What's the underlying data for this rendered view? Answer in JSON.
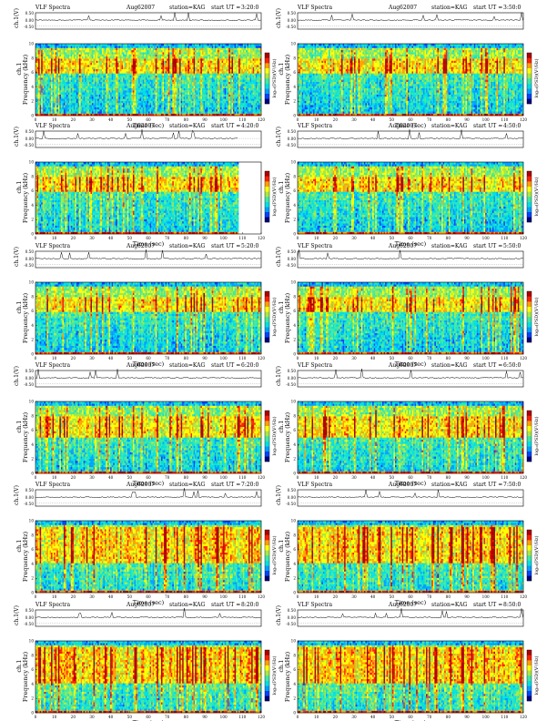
{
  "header": {
    "product": "VLF Spectra",
    "date": "Aug62007",
    "station": "station=KAG",
    "start_label": "start  UT ="
  },
  "labels": {
    "amplitude_axis": "ch.1(V)",
    "channel": "ch.1",
    "frequency_axis": "Frequency (kHz)",
    "time_axis": "Time (sec)",
    "colorbar": "log₁₀(PSD)(V²/Hz)"
  },
  "colors": {
    "cmap": [
      "#000080",
      "#0044ff",
      "#00a0ff",
      "#00e0e0",
      "#40e8a0",
      "#a8e840",
      "#ffff00",
      "#ffa000",
      "#ff2000",
      "#b00000"
    ]
  },
  "chart_data": [
    {
      "type": "heatmap",
      "panel": 1,
      "start": "3:20:0",
      "x_range": [
        0,
        120
      ],
      "y_range": [
        0,
        10
      ],
      "amplitude_ticks": [
        "0.50",
        "0.00",
        "-0.50"
      ],
      "x_ticks": [
        0,
        10,
        20,
        30,
        40,
        50,
        60,
        70,
        80,
        90,
        100,
        110,
        120
      ],
      "y_ticks": [
        0,
        2,
        4,
        6,
        8,
        10
      ],
      "data_end_sec": 120,
      "peak_band_khz": [
        6,
        8
      ],
      "intensity": "medium"
    },
    {
      "type": "heatmap",
      "panel": 2,
      "start": "3:50:0",
      "x_range": [
        0,
        120
      ],
      "y_range": [
        0,
        10
      ],
      "amplitude_ticks": [
        "0.50",
        "0.00",
        "-0.50"
      ],
      "x_ticks": [
        0,
        10,
        20,
        30,
        40,
        50,
        60,
        70,
        80,
        90,
        100,
        110,
        120
      ],
      "y_ticks": [
        0,
        2,
        4,
        6,
        8,
        10
      ],
      "data_end_sec": 120,
      "peak_band_khz": [
        6,
        8
      ],
      "intensity": "medium"
    },
    {
      "type": "heatmap",
      "panel": 3,
      "start": "4:20:0",
      "x_range": [
        0,
        120
      ],
      "y_range": [
        0,
        10
      ],
      "amplitude_ticks": [
        "0.50",
        "0.00",
        "-0.50"
      ],
      "x_ticks": [
        0,
        10,
        20,
        30,
        40,
        50,
        60,
        70,
        80,
        90,
        100,
        110,
        120
      ],
      "y_ticks": [
        0,
        2,
        4,
        6,
        8,
        10
      ],
      "data_end_sec": 108,
      "peak_band_khz": [
        6,
        8
      ],
      "intensity": "medium"
    },
    {
      "type": "heatmap",
      "panel": 4,
      "start": "4:50:0",
      "x_range": [
        0,
        120
      ],
      "y_range": [
        0,
        10
      ],
      "amplitude_ticks": [
        "0.50",
        "0.00",
        "-0.50"
      ],
      "x_ticks": [
        0,
        10,
        20,
        30,
        40,
        50,
        60,
        70,
        80,
        90,
        100,
        110,
        120
      ],
      "y_ticks": [
        0,
        2,
        4,
        6,
        8,
        10
      ],
      "data_end_sec": 120,
      "peak_band_khz": [
        6,
        8
      ],
      "intensity": "medium"
    },
    {
      "type": "heatmap",
      "panel": 5,
      "start": "5:20:0",
      "x_range": [
        0,
        120
      ],
      "y_range": [
        0,
        10
      ],
      "amplitude_ticks": [
        "0.50",
        "0.00",
        "-0.50"
      ],
      "x_ticks": [
        0,
        10,
        20,
        30,
        40,
        50,
        60,
        70,
        80,
        90,
        100,
        110,
        120
      ],
      "y_ticks": [
        0,
        2,
        4,
        6,
        8,
        10
      ],
      "data_end_sec": 120,
      "peak_band_khz": [
        6,
        8
      ],
      "intensity": "medium"
    },
    {
      "type": "heatmap",
      "panel": 6,
      "start": "5:50:0",
      "x_range": [
        0,
        120
      ],
      "y_range": [
        0,
        10
      ],
      "amplitude_ticks": [
        "0.50",
        "0.00",
        "-0.50"
      ],
      "x_ticks": [
        0,
        10,
        20,
        30,
        40,
        50,
        60,
        70,
        80,
        90,
        100,
        110,
        120
      ],
      "y_ticks": [
        0,
        2,
        4,
        6,
        8,
        10
      ],
      "data_end_sec": 120,
      "peak_band_khz": [
        6,
        8
      ],
      "intensity": "medium"
    },
    {
      "type": "heatmap",
      "panel": 7,
      "start": "6:20:0",
      "x_range": [
        0,
        120
      ],
      "y_range": [
        0,
        10
      ],
      "amplitude_ticks": [
        "0.50",
        "0.00",
        "-0.50"
      ],
      "x_ticks": [
        0,
        10,
        20,
        30,
        40,
        50,
        60,
        70,
        80,
        90,
        100,
        110,
        120
      ],
      "y_ticks": [
        0,
        2,
        4,
        6,
        8,
        10
      ],
      "data_end_sec": 120,
      "peak_band_khz": [
        5,
        8
      ],
      "intensity": "medium"
    },
    {
      "type": "heatmap",
      "panel": 8,
      "start": "6:50:0",
      "x_range": [
        0,
        120
      ],
      "y_range": [
        0,
        10
      ],
      "amplitude_ticks": [
        "0.50",
        "0.00",
        "-0.50"
      ],
      "x_ticks": [
        0,
        10,
        20,
        30,
        40,
        50,
        60,
        70,
        80,
        90,
        100,
        110,
        120
      ],
      "y_ticks": [
        0,
        2,
        4,
        6,
        8,
        10
      ],
      "data_end_sec": 120,
      "peak_band_khz": [
        5,
        8
      ],
      "intensity": "medium"
    },
    {
      "type": "heatmap",
      "panel": 9,
      "start": "7:20:0",
      "x_range": [
        0,
        120
      ],
      "y_range": [
        0,
        10
      ],
      "amplitude_ticks": [
        "0.50",
        "0.00",
        "-0.50"
      ],
      "x_ticks": [
        0,
        10,
        20,
        30,
        40,
        50,
        60,
        70,
        80,
        90,
        100,
        110,
        120
      ],
      "y_ticks": [
        0,
        2,
        4,
        6,
        8,
        10
      ],
      "data_end_sec": 120,
      "peak_band_khz": [
        4,
        9
      ],
      "intensity": "high"
    },
    {
      "type": "heatmap",
      "panel": 10,
      "start": "7:50:0",
      "x_range": [
        0,
        120
      ],
      "y_range": [
        0,
        10
      ],
      "amplitude_ticks": [
        "0.50",
        "0.00",
        "-0.50"
      ],
      "x_ticks": [
        0,
        10,
        20,
        30,
        40,
        50,
        60,
        70,
        80,
        90,
        100,
        110,
        120
      ],
      "y_ticks": [
        0,
        2,
        4,
        6,
        8,
        10
      ],
      "data_end_sec": 120,
      "peak_band_khz": [
        4,
        9
      ],
      "intensity": "high"
    },
    {
      "type": "heatmap",
      "panel": 11,
      "start": "8:20:0",
      "x_range": [
        0,
        120
      ],
      "y_range": [
        0,
        10
      ],
      "amplitude_ticks": [
        "0.50",
        "0.00",
        "-0.50"
      ],
      "x_ticks": [
        0,
        10,
        20,
        30,
        40,
        50,
        60,
        70,
        80,
        90,
        100,
        110,
        120
      ],
      "y_ticks": [
        0,
        2,
        4,
        6,
        8,
        10
      ],
      "data_end_sec": 120,
      "peak_band_khz": [
        4,
        9
      ],
      "intensity": "high"
    },
    {
      "type": "heatmap",
      "panel": 12,
      "start": "8:50:0",
      "x_range": [
        0,
        120
      ],
      "y_range": [
        0,
        10
      ],
      "amplitude_ticks": [
        "0.50",
        "0.00",
        "-0.50"
      ],
      "x_ticks": [
        0,
        10,
        20,
        30,
        40,
        50,
        60,
        70,
        80,
        90,
        100,
        110,
        120
      ],
      "y_ticks": [
        0,
        2,
        4,
        6,
        8,
        10
      ],
      "data_end_sec": 120,
      "peak_band_khz": [
        4,
        9
      ],
      "intensity": "high"
    }
  ]
}
